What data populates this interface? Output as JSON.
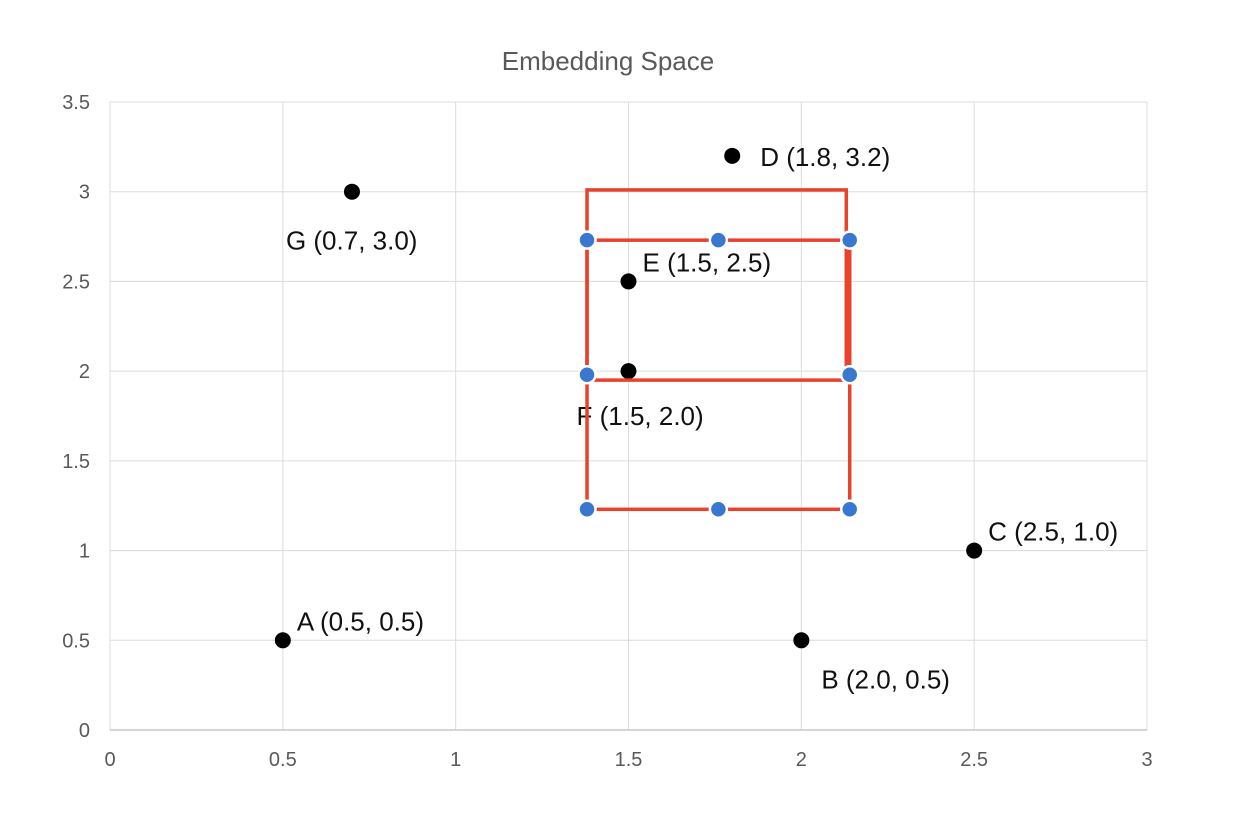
{
  "chart_data": {
    "type": "scatter",
    "title": "Embedding Space",
    "xlabel": "",
    "ylabel": "",
    "xlim": [
      0,
      3
    ],
    "ylim": [
      0,
      3.5
    ],
    "xticks": [
      "0",
      "0.5",
      "1",
      "1.5",
      "2",
      "2.5",
      "3"
    ],
    "xtick_values": [
      0,
      0.5,
      1,
      1.5,
      2,
      2.5,
      3
    ],
    "yticks": [
      "0",
      "0.5",
      "1",
      "1.5",
      "2",
      "2.5",
      "3",
      "3.5"
    ],
    "ytick_values": [
      0,
      0.5,
      1,
      1.5,
      2,
      2.5,
      3,
      3.5
    ],
    "grid": true,
    "points": [
      {
        "label": "A (0.5, 0.5)",
        "x": 0.5,
        "y": 0.5,
        "label_position": "upper-right"
      },
      {
        "label": "B (2.0, 0.5)",
        "x": 2.0,
        "y": 0.5,
        "label_position": "lower-right"
      },
      {
        "label": "C (2.5, 1.0)",
        "x": 2.5,
        "y": 1.0,
        "label_position": "upper-right"
      },
      {
        "label": "D (1.8, 3.2)",
        "x": 1.8,
        "y": 3.2,
        "label_position": "right"
      },
      {
        "label": "E (1.5, 2.5)",
        "x": 1.5,
        "y": 2.5,
        "label_position": "upper-right"
      },
      {
        "label": "F (1.5, 2.0)",
        "x": 1.5,
        "y": 2.0,
        "label_position": "lower"
      },
      {
        "label": "G (0.7, 3.0)",
        "x": 0.7,
        "y": 3.0,
        "label_position": "lower"
      }
    ],
    "point_color": "#000000",
    "overlay": {
      "line_color": "#e8412c",
      "handle_color": "#3a78d0",
      "rects": [
        {
          "name": "upper-box",
          "x0": 1.38,
          "x1": 2.13,
          "y0": 1.95,
          "y1": 3.01
        },
        {
          "name": "lower-box",
          "x0": 1.38,
          "x1": 2.14,
          "y0": 1.23,
          "y1": 2.73
        }
      ],
      "handles": [
        {
          "x": 1.38,
          "y": 2.73
        },
        {
          "x": 1.76,
          "y": 2.73
        },
        {
          "x": 2.14,
          "y": 2.73
        },
        {
          "x": 1.38,
          "y": 1.98
        },
        {
          "x": 2.14,
          "y": 1.98
        },
        {
          "x": 1.38,
          "y": 1.23
        },
        {
          "x": 1.76,
          "y": 1.23
        },
        {
          "x": 2.14,
          "y": 1.23
        }
      ]
    }
  }
}
